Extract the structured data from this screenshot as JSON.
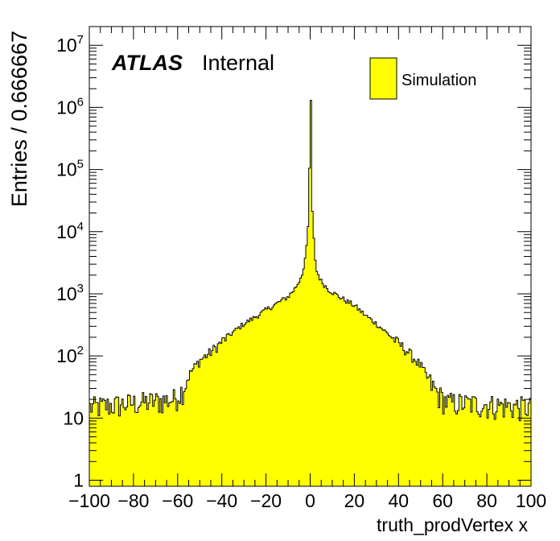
{
  "chart_data": {
    "type": "histogram",
    "title": "",
    "xlabel": "truth_prodVertex x",
    "ylabel": "Entries / 0.666667",
    "xlim": [
      -100,
      100
    ],
    "ylim": [
      0.8,
      20000000
    ],
    "yscale": "log",
    "grid": false,
    "bin_width": 0.666667,
    "x_ticks": [
      "−100",
      "−80",
      "−60",
      "−40",
      "−20",
      "0",
      "20",
      "40",
      "60",
      "80",
      "100"
    ],
    "y_ticks": [
      {
        "base": "1",
        "exp": ""
      },
      {
        "base": "10",
        "exp": ""
      },
      {
        "base": "10",
        "exp": "2"
      },
      {
        "base": "10",
        "exp": "3"
      },
      {
        "base": "10",
        "exp": "4"
      },
      {
        "base": "10",
        "exp": "5"
      },
      {
        "base": "10",
        "exp": "6"
      },
      {
        "base": "10",
        "exp": "7"
      }
    ],
    "annotation": {
      "experiment": "ATLAS",
      "status": "Internal"
    },
    "legend": {
      "position": "top-right",
      "entries": [
        "Simulation"
      ]
    },
    "series": [
      {
        "name": "Simulation",
        "color": "#ffff00",
        "line_color": "#000000"
      }
    ],
    "profile": [
      {
        "x": -100,
        "y": 15
      },
      {
        "x": -62,
        "y": 20
      },
      {
        "x": -58,
        "y": 28
      },
      {
        "x": -54,
        "y": 55
      },
      {
        "x": -50,
        "y": 85
      },
      {
        "x": -45,
        "y": 115
      },
      {
        "x": -40,
        "y": 170
      },
      {
        "x": -35,
        "y": 240
      },
      {
        "x": -30,
        "y": 330
      },
      {
        "x": -25,
        "y": 420
      },
      {
        "x": -20,
        "y": 550
      },
      {
        "x": -15,
        "y": 700
      },
      {
        "x": -10,
        "y": 900
      },
      {
        "x": -7,
        "y": 1200
      },
      {
        "x": -5,
        "y": 1600
      },
      {
        "x": -3,
        "y": 2500
      },
      {
        "x": -2,
        "y": 4000
      },
      {
        "x": -1,
        "y": 12000
      },
      {
        "x": -0.5,
        "y": 30000
      },
      {
        "x": 0,
        "y": 1300000
      },
      {
        "x": 0.5,
        "y": 1300000
      },
      {
        "x": 1,
        "y": 20000
      },
      {
        "x": 2,
        "y": 4500
      },
      {
        "x": 3,
        "y": 2300
      },
      {
        "x": 5,
        "y": 1600
      },
      {
        "x": 8,
        "y": 1200
      },
      {
        "x": 12,
        "y": 950
      },
      {
        "x": 16,
        "y": 780
      },
      {
        "x": 20,
        "y": 650
      },
      {
        "x": 25,
        "y": 450
      },
      {
        "x": 30,
        "y": 330
      },
      {
        "x": 35,
        "y": 230
      },
      {
        "x": 40,
        "y": 160
      },
      {
        "x": 45,
        "y": 110
      },
      {
        "x": 50,
        "y": 70
      },
      {
        "x": 54,
        "y": 38
      },
      {
        "x": 58,
        "y": 24
      },
      {
        "x": 62,
        "y": 18
      },
      {
        "x": 100,
        "y": 15
      }
    ]
  }
}
